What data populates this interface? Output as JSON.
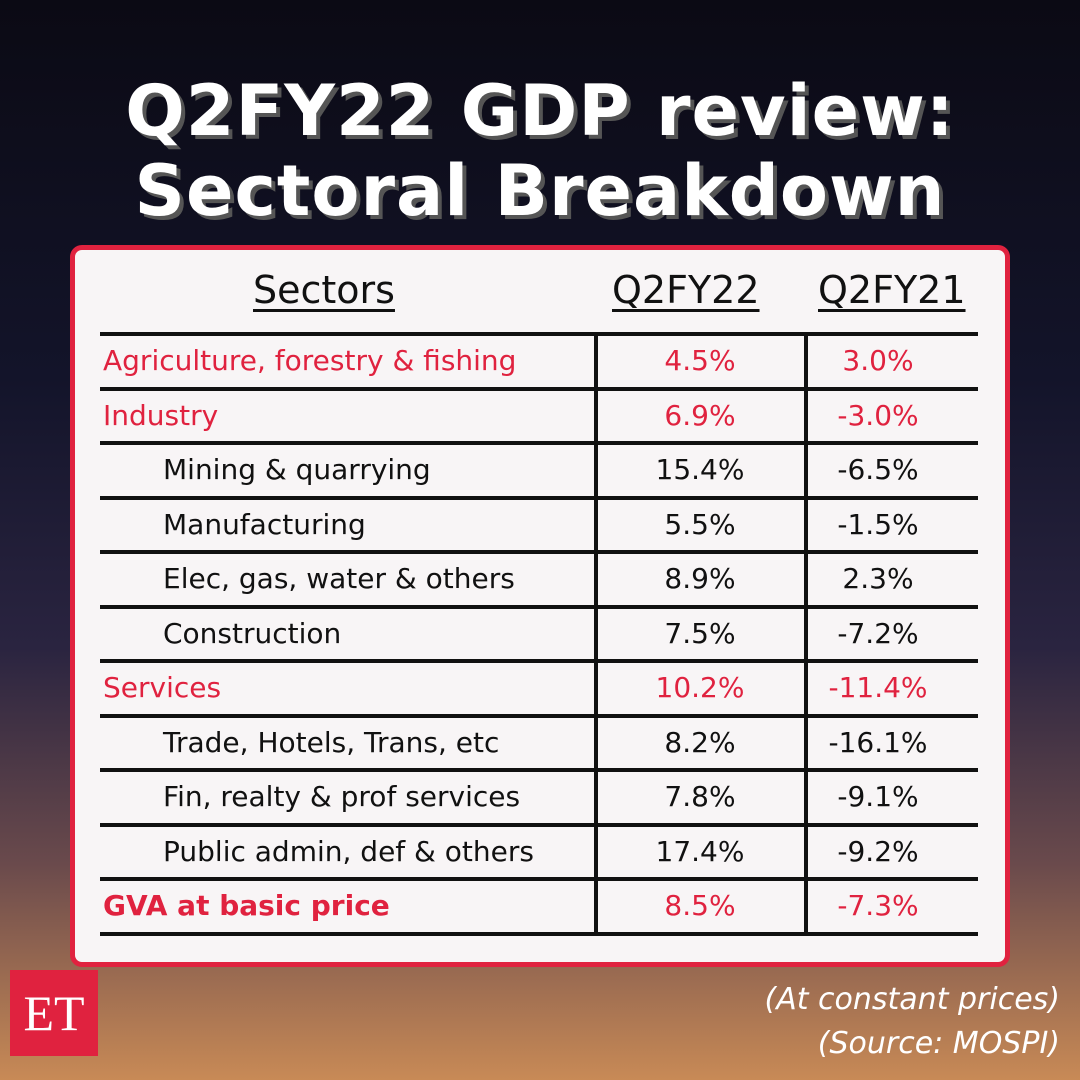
{
  "header": {
    "title": [
      "Q2FY22 GDP review:",
      "Sectoral Breakdown"
    ]
  },
  "table": {
    "columns": [
      "Sectors",
      "Q2FY22",
      "Q2FY21"
    ],
    "groups": [
      {
        "name": "Agriculture, forestry & fishing",
        "values": [
          "4.5%",
          "3.0%"
        ],
        "subrows": []
      },
      {
        "name": "Industry",
        "values": [
          "6.9%",
          "-3.0%"
        ],
        "subrows": [
          {
            "name": "Mining & quarrying",
            "values": [
              "15.4%",
              "-6.5%"
            ]
          },
          {
            "name": "Manufacturing",
            "values": [
              "5.5%",
              "-1.5%"
            ]
          },
          {
            "name": "Elec, gas, water & others",
            "values": [
              "8.9%",
              "2.3%"
            ]
          },
          {
            "name": "Construction",
            "values": [
              "7.5%",
              "-7.2%"
            ]
          }
        ]
      },
      {
        "name": "Services",
        "values": [
          "10.2%",
          "-11.4%"
        ],
        "subrows": [
          {
            "name": "Trade, Hotels, Trans, etc",
            "values": [
              "8.2%",
              "-16.1%"
            ]
          },
          {
            "name": "Fin, realty & prof services",
            "values": [
              "7.8%",
              "-9.1%"
            ]
          },
          {
            "name": "Public admin, def & others",
            "values": [
              "17.4%",
              "-9.2%"
            ]
          }
        ]
      },
      {
        "name": "GVA at basic price",
        "values": [
          "8.5%",
          "-7.3%"
        ],
        "subrows": []
      }
    ]
  },
  "footer": {
    "logo": "ET",
    "notes": [
      "(At constant prices)",
      "(Source: MOSPI)"
    ]
  }
}
